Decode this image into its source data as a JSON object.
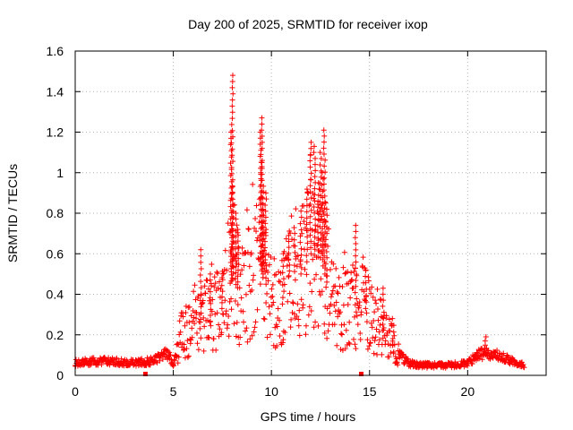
{
  "chart_data": {
    "type": "scatter",
    "title": "Day 200 of 2025, SRMTID for receiver ixop",
    "xlabel": "GPS time / hours",
    "ylabel": "SRMTID / TECUs",
    "xlim": [
      0,
      24
    ],
    "ylim": [
      0,
      1.6
    ],
    "xticks": [
      0,
      5,
      10,
      15,
      20
    ],
    "xtick_labels": [
      "0",
      "5",
      "10",
      "15",
      "20"
    ],
    "yticks": [
      0,
      0.2,
      0.4,
      0.6,
      0.8,
      1.0,
      1.2,
      1.4,
      1.6
    ],
    "ytick_labels": [
      "0",
      "0.2",
      "0.4",
      "0.6",
      "0.8",
      "1",
      "1.2",
      "1.4",
      "1.6"
    ],
    "grid": true,
    "marker": "+",
    "color": "#ff0000",
    "series": [
      {
        "name": "SRMTID",
        "profile": [
          [
            0.0,
            0.06
          ],
          [
            1.0,
            0.07
          ],
          [
            2.0,
            0.07
          ],
          [
            3.0,
            0.06
          ],
          [
            3.8,
            0.07
          ],
          [
            4.3,
            0.09
          ],
          [
            4.7,
            0.11
          ],
          [
            5.0,
            0.06
          ],
          [
            5.4,
            0.2
          ],
          [
            6.0,
            0.26
          ],
          [
            7.0,
            0.3
          ],
          [
            7.5,
            0.33
          ],
          [
            8.0,
            0.48
          ],
          [
            8.5,
            0.4
          ],
          [
            9.0,
            0.5
          ],
          [
            9.5,
            0.55
          ],
          [
            10.0,
            0.3
          ],
          [
            10.5,
            0.35
          ],
          [
            11.0,
            0.52
          ],
          [
            11.5,
            0.5
          ],
          [
            12.0,
            0.6
          ],
          [
            12.5,
            0.58
          ],
          [
            13.0,
            0.38
          ],
          [
            13.5,
            0.33
          ],
          [
            14.0,
            0.33
          ],
          [
            14.5,
            0.36
          ],
          [
            15.0,
            0.31
          ],
          [
            15.5,
            0.25
          ],
          [
            16.0,
            0.18
          ],
          [
            16.5,
            0.1
          ],
          [
            17.0,
            0.06
          ],
          [
            17.5,
            0.05
          ],
          [
            18.0,
            0.05
          ],
          [
            19.0,
            0.05
          ],
          [
            20.0,
            0.06
          ],
          [
            20.5,
            0.1
          ],
          [
            21.0,
            0.11
          ],
          [
            21.5,
            0.1
          ],
          [
            22.0,
            0.08
          ],
          [
            22.5,
            0.06
          ],
          [
            22.9,
            0.05
          ]
        ],
        "spikes": [
          [
            8.0,
            1.48
          ],
          [
            7.95,
            1.2
          ],
          [
            8.05,
            0.93
          ],
          [
            8.2,
            0.8
          ],
          [
            8.3,
            0.72
          ],
          [
            9.5,
            1.27
          ],
          [
            9.45,
            1.2
          ],
          [
            9.55,
            1.05
          ],
          [
            9.7,
            0.9
          ],
          [
            9.6,
            0.82
          ],
          [
            10.9,
            0.69
          ],
          [
            11.5,
            0.78
          ],
          [
            11.8,
            0.9
          ],
          [
            12.0,
            1.15
          ],
          [
            12.2,
            1.13
          ],
          [
            12.5,
            1.1
          ],
          [
            12.7,
            1.21
          ],
          [
            12.6,
            1.0
          ],
          [
            12.4,
            0.95
          ],
          [
            12.8,
            0.85
          ],
          [
            6.4,
            0.62
          ],
          [
            6.9,
            0.5
          ],
          [
            7.5,
            0.5
          ],
          [
            14.3,
            0.74
          ],
          [
            14.8,
            0.52
          ],
          [
            15.7,
            0.43
          ],
          [
            16.2,
            0.28
          ],
          [
            20.9,
            0.19
          ],
          [
            10.6,
            0.6
          ],
          [
            11.2,
            0.7
          ]
        ],
        "outliers": [
          [
            3.6,
            0.0
          ],
          [
            14.6,
            0.0
          ]
        ]
      }
    ]
  }
}
